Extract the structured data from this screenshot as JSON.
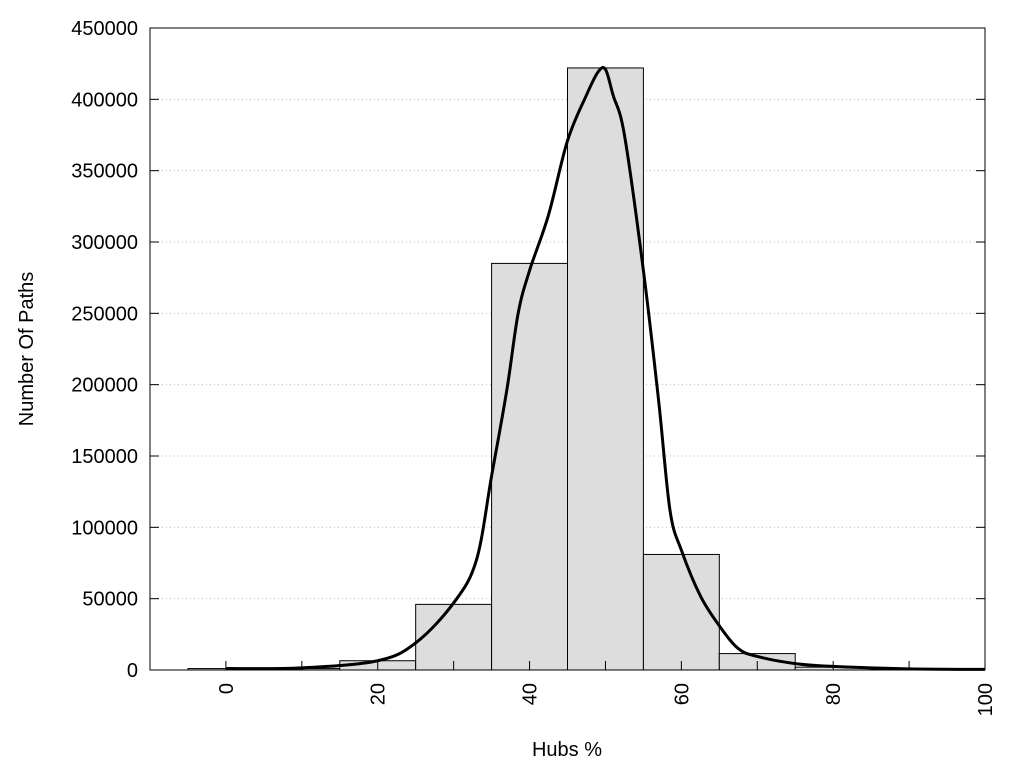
{
  "chart_data": {
    "type": "bar",
    "title": "",
    "xlabel": "Hubs %",
    "ylabel": "Number Of Paths",
    "xlim": [
      -10,
      100
    ],
    "ylim": [
      0,
      450000
    ],
    "grid": "horizontal dotted",
    "x_ticks": [
      0,
      10,
      20,
      30,
      40,
      50,
      60,
      70,
      80,
      90,
      100
    ],
    "x_tick_labels": [
      "0",
      "20",
      "40",
      "60",
      "80",
      "100"
    ],
    "y_tick_labels": [
      "0",
      "50000",
      "100000",
      "150000",
      "200000",
      "250000",
      "300000",
      "350000",
      "400000",
      "450000"
    ],
    "bar_color": "#dddddd",
    "bar_width": 10,
    "categories": [
      0,
      10,
      20,
      30,
      40,
      50,
      60,
      70,
      80,
      90
    ],
    "values": [
      1000,
      1000,
      6500,
      46000,
      285000,
      422000,
      81000,
      11500,
      2000,
      500
    ],
    "curve": {
      "color": "#000000",
      "x": [
        0,
        10,
        20,
        25,
        30,
        33,
        35,
        37,
        38.5,
        40,
        42.5,
        45,
        47.5,
        49,
        50,
        51,
        52.5,
        55,
        57,
        58.5,
        60,
        62.5,
        65,
        67.5,
        70,
        75,
        80,
        90,
        100
      ],
      "y": [
        1000,
        1500,
        6500,
        19000,
        47000,
        77000,
        136000,
        196000,
        250000,
        280000,
        319000,
        371000,
        403000,
        419000,
        421000,
        403000,
        375000,
        280000,
        189000,
        112000,
        84000,
        52000,
        31000,
        15000,
        9500,
        4500,
        2500,
        800,
        400
      ]
    }
  }
}
